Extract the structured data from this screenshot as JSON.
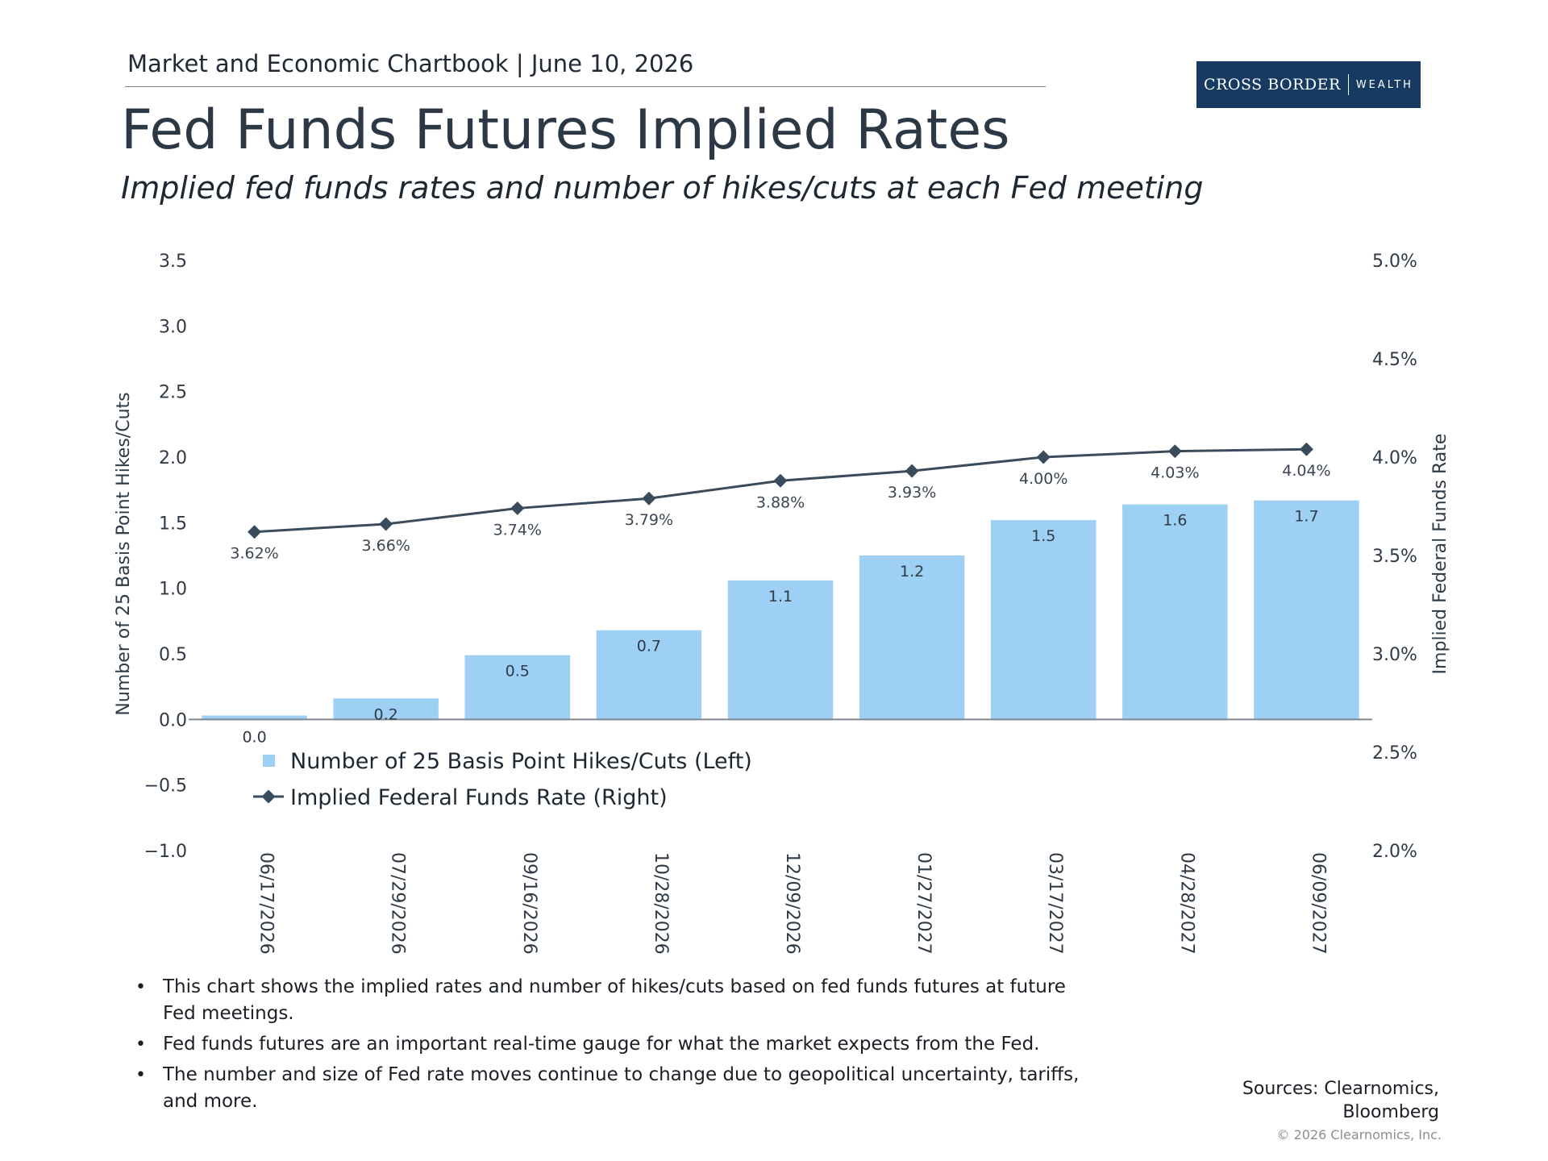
{
  "header": {
    "chartbook": "Market and Economic Chartbook | June 10, 2026",
    "title": "Fed Funds Futures Implied Rates",
    "subtitle": "Implied fed funds rates and number of hikes/cuts at each Fed meeting"
  },
  "logo": {
    "main": "CROSS BORDER",
    "sub": "WEALTH"
  },
  "colors": {
    "bar": "#9ecff5",
    "line": "#3a4b5c",
    "logo_bg": "#173a63"
  },
  "chart_data": {
    "type": "bar",
    "categories": [
      "06/17/2026",
      "07/29/2026",
      "09/16/2026",
      "10/28/2026",
      "12/09/2026",
      "01/27/2027",
      "03/17/2027",
      "04/28/2027",
      "06/09/2027"
    ],
    "series": [
      {
        "name": "Number of 25 Basis Point Hikes/Cuts (Left)",
        "type": "bar",
        "axis": "left",
        "values": [
          0.03,
          0.16,
          0.49,
          0.68,
          1.06,
          1.25,
          1.52,
          1.64,
          1.67
        ],
        "labels": [
          "0.0",
          "0.2",
          "0.5",
          "0.7",
          "1.1",
          "1.2",
          "1.5",
          "1.6",
          "1.7"
        ]
      },
      {
        "name": "Implied Federal Funds Rate (Right)",
        "type": "line",
        "axis": "right",
        "values": [
          3.62,
          3.66,
          3.74,
          3.79,
          3.88,
          3.93,
          4.0,
          4.03,
          4.04
        ],
        "labels": [
          "3.62%",
          "3.66%",
          "3.74%",
          "3.79%",
          "3.88%",
          "3.93%",
          "4.00%",
          "4.03%",
          "4.04%"
        ]
      }
    ],
    "y_left": {
      "label": "Number of 25 Basis Point Hikes/Cuts",
      "range": [
        -1.0,
        3.5
      ],
      "ticks": [
        3.5,
        3.0,
        2.5,
        2.0,
        1.5,
        1.0,
        0.5,
        0.0,
        -0.5,
        -1.0
      ],
      "tick_labels": [
        "3.5",
        "3.0",
        "2.5",
        "2.0",
        "1.5",
        "1.0",
        "0.5",
        "0.0",
        "−0.5",
        "−1.0"
      ]
    },
    "y_right": {
      "label": "Implied Federal Funds Rate",
      "range": [
        2.0,
        5.0
      ],
      "ticks": [
        5.0,
        4.5,
        4.0,
        3.5,
        3.0,
        2.5,
        2.0
      ],
      "tick_labels": [
        "5.0%",
        "4.5%",
        "4.0%",
        "3.5%",
        "3.0%",
        "2.5%",
        "2.0%"
      ]
    },
    "grid": false,
    "legend": "bottom-left"
  },
  "bullets": [
    "This chart shows the implied rates and number of hikes/cuts based on fed funds futures at future Fed meetings.",
    "Fed funds futures are an important real-time gauge for what the market expects from the Fed.",
    "The number and size of Fed rate moves continue to change due to geopolitical uncertainty, tariffs, and more."
  ],
  "bullet_symbol": "•",
  "sources": [
    "Sources: Clearnomics,",
    "Bloomberg"
  ],
  "copyright": "© 2026 Clearnomics, Inc."
}
